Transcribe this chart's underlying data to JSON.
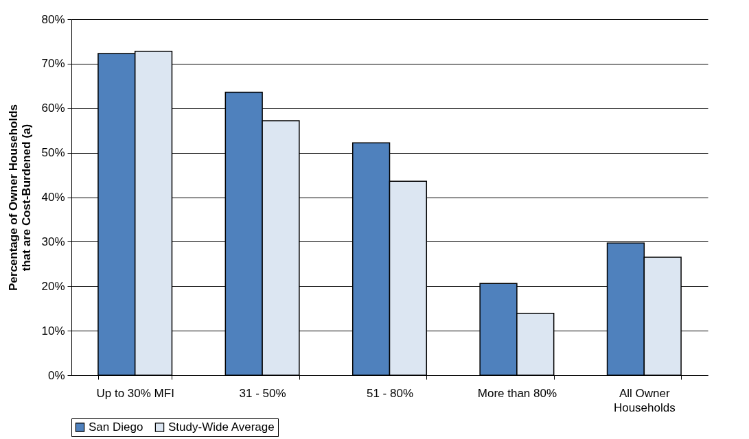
{
  "chart_data": {
    "type": "bar",
    "ylabel": "Percentage of Owner Households that are Cost-Burdened (a)",
    "categories": [
      "Up to 30% MFI",
      "31 - 50%",
      "51 - 80%",
      "More than 80%",
      "All Owner Households"
    ],
    "series": [
      {
        "name": "San Diego",
        "color": "#4f81bd",
        "values": [
          72.3,
          63.6,
          52.2,
          20.6,
          29.7
        ]
      },
      {
        "name": "Study-Wide Average",
        "color": "#dce6f2",
        "values": [
          72.8,
          57.2,
          43.6,
          13.9,
          26.5
        ]
      }
    ],
    "ylim": [
      0,
      80
    ],
    "yticks": [
      {
        "value": 0,
        "label": "0%"
      },
      {
        "value": 10,
        "label": "10%"
      },
      {
        "value": 20,
        "label": "20%"
      },
      {
        "value": 30,
        "label": "30%"
      },
      {
        "value": 40,
        "label": "40%"
      },
      {
        "value": 50,
        "label": "50%"
      },
      {
        "value": 60,
        "label": "60%"
      },
      {
        "value": 70,
        "label": "70%"
      },
      {
        "value": 80,
        "label": "80%"
      }
    ],
    "grid": "y",
    "legend": "bottom"
  }
}
